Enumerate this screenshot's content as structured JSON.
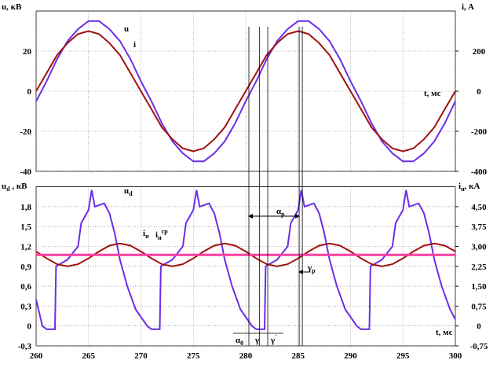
{
  "chart_data": [
    {
      "type": "line",
      "ylabel": {
        "text": "u, кВ"
      },
      "y2label": {
        "text": "i, A"
      },
      "xlabel": {
        "text": "t, мс"
      },
      "xlim": [
        260,
        300
      ],
      "xticks": [
        260,
        265,
        270,
        275,
        280,
        285,
        290,
        295,
        300
      ],
      "ylim": [
        -40,
        40
      ],
      "yticks": [
        -40,
        -20,
        0,
        20
      ],
      "y2lim": [
        -400,
        400
      ],
      "y2ticks": [
        -400,
        -200,
        0,
        200
      ],
      "grid": true,
      "show_xtick_labels": false,
      "x": [
        260,
        261,
        262,
        263,
        264,
        265,
        266,
        267,
        268,
        269,
        270,
        271,
        272,
        273,
        274,
        275,
        276,
        277,
        278,
        279,
        280,
        281,
        282,
        283,
        284,
        285,
        286,
        287,
        288,
        289,
        290,
        291,
        292,
        293,
        294,
        295,
        296,
        297,
        298,
        299,
        300
      ],
      "series": [
        {
          "name": {
            "text": "u"
          },
          "color": "#6a2ee8",
          "values": [
            -5,
            5,
            16,
            25,
            31,
            35,
            35,
            31,
            25,
            16,
            5,
            -5,
            -16,
            -25,
            -31,
            -35,
            -35,
            -31,
            -25,
            -16,
            -5,
            5,
            16,
            25,
            31,
            35,
            35,
            31,
            25,
            16,
            5,
            -5,
            -16,
            -25,
            -31,
            -35,
            -35,
            -31,
            -25,
            -16,
            -5
          ]
        },
        {
          "name": {
            "text": "i"
          },
          "color": "#a01010",
          "axis": "y2",
          "values": [
            0,
            90,
            180,
            240,
            285,
            300,
            285,
            240,
            180,
            90,
            0,
            -90,
            -180,
            -240,
            -285,
            -300,
            -285,
            -240,
            -180,
            -90,
            0,
            90,
            180,
            240,
            285,
            300,
            285,
            240,
            180,
            90,
            0,
            -90,
            -180,
            -240,
            -285,
            -300,
            -285,
            -240,
            -180,
            -90,
            0
          ]
        }
      ]
    },
    {
      "type": "line",
      "ylabel": {
        "text": "u",
        "sub": "d",
        "tail": " , кВ"
      },
      "y2label": {
        "text": "i",
        "sub": "н",
        "tail": ", кА"
      },
      "xlabel": {
        "text": "t, мс"
      },
      "xlim": [
        260,
        300
      ],
      "xticks": [
        260,
        265,
        270,
        275,
        280,
        285,
        290,
        295,
        300
      ],
      "ylim": [
        -0.3,
        2.1
      ],
      "yticks": [
        {
          "value": -0.3,
          "label": "-0,3"
        },
        0,
        {
          "value": 0.3,
          "label": "0,3"
        },
        {
          "value": 0.6,
          "label": "0,6"
        },
        {
          "value": 0.9,
          "label": "0,9"
        },
        {
          "value": 1.2,
          "label": "1,2"
        },
        {
          "value": 1.5,
          "label": "1,5"
        },
        {
          "value": 1.8,
          "label": "1,8"
        }
      ],
      "y2lim": [
        -0.75,
        5.25
      ],
      "y2ticks": [
        {
          "value": -0.75,
          "label": "-0,75"
        },
        0,
        {
          "value": 0.75,
          "label": "0,75"
        },
        {
          "value": 1.5,
          "label": "1,50"
        },
        {
          "value": 2.25,
          "label": "2,25"
        },
        {
          "value": 3,
          "label": "3,00"
        },
        {
          "value": 3.75,
          "label": "3,75"
        },
        {
          "value": 4.5,
          "label": "4,50"
        }
      ],
      "grid": true,
      "show_xtick_labels": true,
      "x": [
        260,
        261,
        262,
        263,
        264,
        265,
        266,
        267,
        268,
        269,
        270,
        271,
        272,
        273,
        274,
        275,
        276,
        277,
        278,
        279,
        280,
        281,
        282,
        283,
        284,
        285,
        286,
        287,
        288,
        289,
        290,
        291,
        292,
        293,
        294,
        295,
        296,
        297,
        298,
        299,
        300
      ],
      "series": [
        {
          "name": {
            "text": "u",
            "sub": "d"
          },
          "color": "#6a2ee8",
          "x": [
            260,
            260.6,
            261,
            261.8,
            261.9,
            263,
            264,
            264.3,
            265,
            265.3,
            265.6,
            266.5,
            267,
            267.5,
            268,
            268.7,
            269.5,
            270.6,
            271,
            271.8,
            271.9,
            273,
            274,
            274.3,
            275,
            275.3,
            275.6,
            276.5,
            277,
            277.5,
            278,
            278.7,
            279.5,
            280.6,
            281,
            281.8,
            281.9,
            283,
            284,
            284.3,
            285,
            285.3,
            285.6,
            286.5,
            287,
            287.5,
            288,
            288.7,
            289.5,
            290.6,
            291,
            291.8,
            291.9,
            293,
            294,
            294.3,
            295,
            295.3,
            295.6,
            296.5,
            297,
            297.5,
            298,
            298.7,
            299.5,
            300
          ],
          "values": [
            0.4,
            0,
            -0.05,
            -0.05,
            0.9,
            1.0,
            1.2,
            1.55,
            1.75,
            2.05,
            1.8,
            1.85,
            1.7,
            1.4,
            1.0,
            0.6,
            0.25,
            0,
            -0.05,
            -0.05,
            0.9,
            1.0,
            1.2,
            1.55,
            1.75,
            2.05,
            1.8,
            1.85,
            1.7,
            1.4,
            1.0,
            0.6,
            0.25,
            0,
            -0.05,
            -0.05,
            0.9,
            1.0,
            1.2,
            1.55,
            1.75,
            2.05,
            1.8,
            1.85,
            1.7,
            1.4,
            1.0,
            0.6,
            0.25,
            0,
            -0.05,
            -0.05,
            0.9,
            1.0,
            1.2,
            1.55,
            1.75,
            2.05,
            1.8,
            1.85,
            1.7,
            1.4,
            1.0,
            0.6,
            0.25,
            0.1
          ]
        },
        {
          "name": {
            "text": "i",
            "sub": "н"
          },
          "color": "#a01010",
          "axis": "y2",
          "values": [
            2.81,
            2.55,
            2.33,
            2.25,
            2.33,
            2.55,
            2.81,
            3.03,
            3.11,
            3.03,
            2.81,
            2.55,
            2.33,
            2.25,
            2.33,
            2.55,
            2.81,
            3.03,
            3.11,
            3.03,
            2.81,
            2.55,
            2.33,
            2.25,
            2.33,
            2.55,
            2.81,
            3.03,
            3.11,
            3.03,
            2.81,
            2.55,
            2.33,
            2.25,
            2.33,
            2.55,
            2.81,
            3.03,
            3.11,
            3.03,
            2.81
          ]
        },
        {
          "name": {
            "text": "i",
            "sub": "н",
            "sup": "ср"
          },
          "color": "#ff3fa0",
          "axis": "y2",
          "width": 3,
          "x": [
            260,
            300
          ],
          "values": [
            2.68,
            2.68
          ]
        }
      ],
      "reference_lines": [
        280.3,
        281.3,
        282.1,
        285.1,
        285.4
      ],
      "annotations": [
        {
          "text": "α",
          "sub": "р"
        },
        {
          "text": "γ",
          "sub": "р"
        },
        {
          "text": "α",
          "sub": "0"
        },
        {
          "text": "γ"
        },
        {
          "text": "γ",
          "sup": "'"
        }
      ]
    }
  ]
}
